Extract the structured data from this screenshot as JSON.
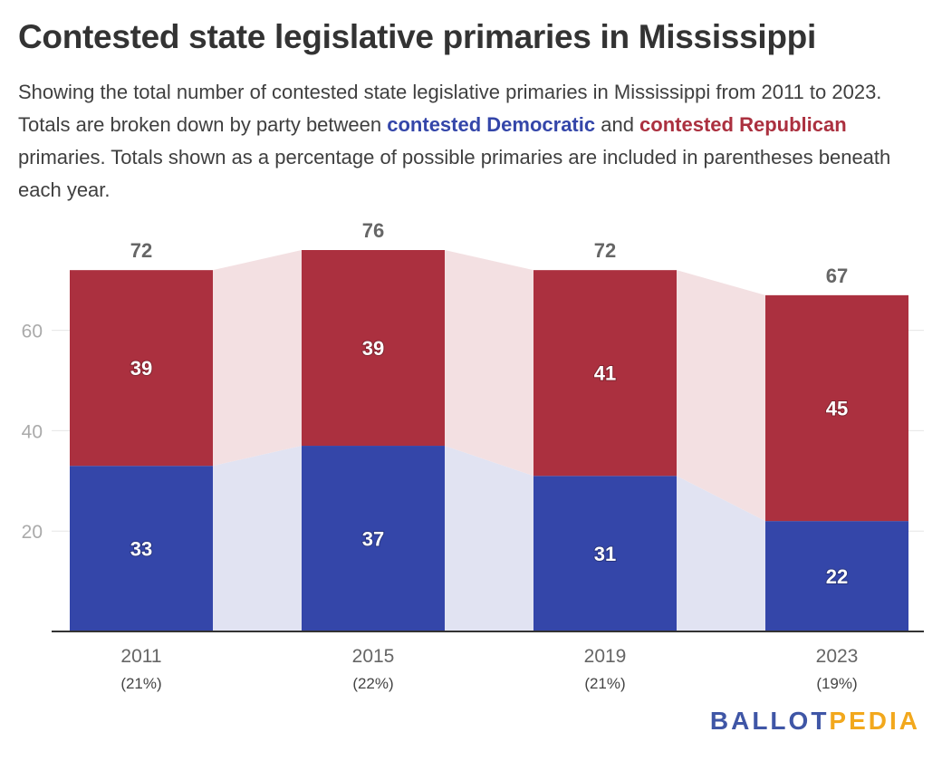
{
  "title": "Contested state legislative primaries in Mississippi",
  "subtitle": {
    "part1": "Showing the total number of contested state legislative primaries in Mississippi from 2011 to 2023. Totals are broken down by party between ",
    "dem_text": "contested Democratic",
    "part2": " and ",
    "rep_text": "contested Republican",
    "part3": " primaries. Totals shown as a percentage of possible primaries are included in parentheses beneath each year."
  },
  "colors": {
    "democratic": "#3446a9",
    "republican": "#ab303f",
    "dem_band": "#e1e3f2",
    "rep_band": "#f3e0e2",
    "grid": "#e6e6e6",
    "axis": "#333333",
    "tick_text": "#aaaaaa",
    "total_text": "#666666"
  },
  "chart_data": {
    "type": "bar",
    "stacked": true,
    "categories": [
      "2011",
      "2015",
      "2019",
      "2023"
    ],
    "category_sublabels": [
      "(21%)",
      "(22%)",
      "(21%)",
      "(19%)"
    ],
    "series": [
      {
        "key": "democratic",
        "values": [
          33,
          37,
          31,
          22
        ]
      },
      {
        "key": "republican",
        "values": [
          39,
          39,
          41,
          45
        ]
      }
    ],
    "totals": [
      72,
      76,
      72,
      67
    ],
    "ylim": [
      0,
      76
    ],
    "yticks": [
      20,
      40,
      60
    ],
    "grid": true,
    "legend": "none"
  },
  "logo": {
    "part1": "BALLOT",
    "part2": "PEDIA"
  }
}
